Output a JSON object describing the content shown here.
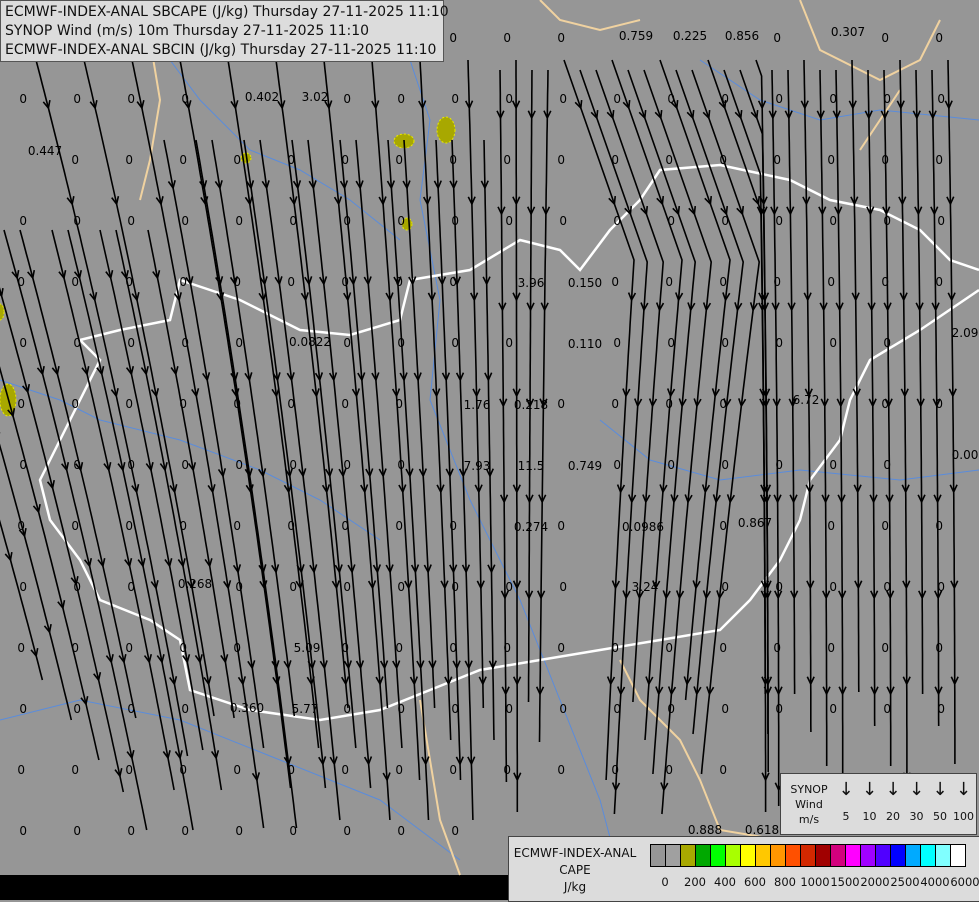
{
  "titles": [
    "ECMWF-INDEX-ANAL SBCAPE (J/kg) Thursday 27-11-2025 11:10",
    "SYNOP Wind (m/s) 10m Thursday 27-11-2025 11:10",
    "ECMWF-INDEX-ANAL SBCIN (J/kg) Thursday 27-11-2025 11:10"
  ],
  "colors": {
    "background": "#969696",
    "border_country": "#ffffff",
    "border_region": "#f0d2a0",
    "river": "#5a8cdc",
    "cape_low": "#a8a800",
    "streamline": "#000000"
  },
  "station_values": [
    "0.759",
    "0.225",
    "0.856",
    "0.307",
    "0.402",
    "3.02",
    "0.447",
    "3.96",
    "0.150",
    "0.0822",
    "0.110",
    "1.76",
    "0.218",
    "6.72",
    "7.93",
    "11.5",
    "0.749",
    "0.274",
    "0.0986",
    "0.867",
    "0.268",
    "3.24",
    "5.09",
    "0.360",
    "5.77",
    "0.888",
    "0.618",
    "2.09",
    "0.00"
  ],
  "zero_value": "0",
  "wind_legend": {
    "label_lines": [
      "SYNOP",
      "Wind",
      "m/s"
    ],
    "speeds": [
      "5",
      "10",
      "20",
      "30",
      "50",
      "100"
    ],
    "icon": "arrow-down-icon"
  },
  "cape_legend": {
    "label_lines": [
      "ECMWF-INDEX-ANAL",
      "CAPE",
      "J/kg"
    ],
    "colors": [
      "#969696",
      "#a0a0a0",
      "#a8a800",
      "#00a800",
      "#00ff00",
      "#a8ff00",
      "#ffff00",
      "#ffc800",
      "#ff9600",
      "#ff5000",
      "#d22800",
      "#a00000",
      "#d2007d",
      "#ff00ff",
      "#a000ff",
      "#5000ff",
      "#0000ff",
      "#00aaff",
      "#00ffff",
      "#80ffff",
      "#ffffff"
    ],
    "ticks": [
      "0",
      "200",
      "400",
      "600",
      "800",
      "1000",
      "1500",
      "2000",
      "2500",
      "4000",
      "6000"
    ]
  }
}
